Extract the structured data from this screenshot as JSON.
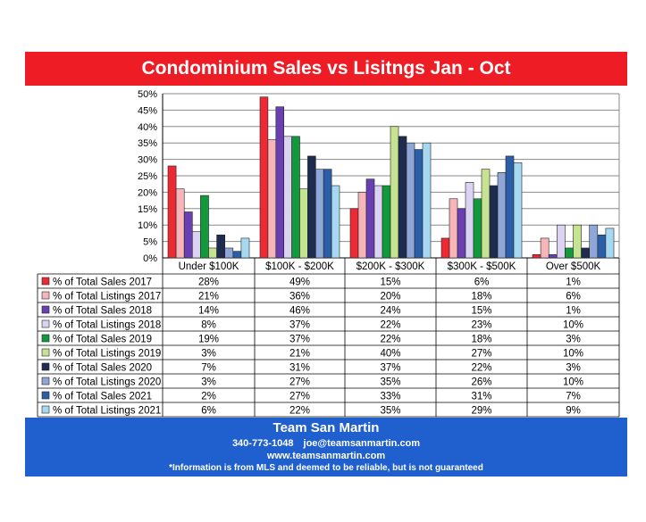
{
  "header": {
    "title": "Condominium Sales vs Lisitngs Jan - Oct"
  },
  "footer": {
    "team": "Team San Martin",
    "phone": "340-773-1048",
    "email": "joe@teamsanmartin.com",
    "website": "www.teamsanmartin.com",
    "disclaimer": "*Information is from MLS and deemed to be reliable, but is not guaranteed"
  },
  "colors": {
    "title_bar": "#ee1c25",
    "footer_bar": "#1f5fce"
  },
  "chart_data": {
    "type": "bar",
    "title": "Condominium Sales vs Lisitngs Jan - Oct",
    "xlabel": "",
    "ylabel": "",
    "ylim": [
      0,
      50
    ],
    "ytick_labels": [
      "0%",
      "5%",
      "10%",
      "15%",
      "20%",
      "25%",
      "30%",
      "35%",
      "40%",
      "45%",
      "50%"
    ],
    "grid": true,
    "legend": "data-table",
    "categories": [
      "Under $100K",
      "$100K - $200K",
      "$200K - $300K",
      "$300K - $500K",
      "Over $500K"
    ],
    "series": [
      {
        "name": "% of Total Sales 2017",
        "color": "#ed2a33",
        "values": [
          28,
          49,
          15,
          6,
          1
        ],
        "labels": [
          "28%",
          "49%",
          "15%",
          "6%",
          "1%"
        ]
      },
      {
        "name": "% of Total Listings 2017",
        "color": "#f5b5b9",
        "values": [
          21,
          36,
          20,
          18,
          6
        ],
        "labels": [
          "21%",
          "36%",
          "20%",
          "18%",
          "6%"
        ]
      },
      {
        "name": "% of Total Sales 2018",
        "color": "#6a3fb2",
        "values": [
          14,
          46,
          24,
          15,
          1
        ],
        "labels": [
          "14%",
          "46%",
          "24%",
          "15%",
          "1%"
        ]
      },
      {
        "name": "% of Total Listings 2018",
        "color": "#dcd3f2",
        "values": [
          8,
          37,
          22,
          23,
          10
        ],
        "labels": [
          "8%",
          "37%",
          "22%",
          "23%",
          "10%"
        ]
      },
      {
        "name": "% of Total Sales 2019",
        "color": "#119a3c",
        "values": [
          19,
          37,
          22,
          18,
          3
        ],
        "labels": [
          "19%",
          "37%",
          "22%",
          "18%",
          "3%"
        ]
      },
      {
        "name": "% of Total Listings 2019",
        "color": "#c6e391",
        "values": [
          3,
          21,
          40,
          27,
          10
        ],
        "labels": [
          "3%",
          "21%",
          "40%",
          "27%",
          "10%"
        ]
      },
      {
        "name": "% of Total Sales 2020",
        "color": "#1d2c4f",
        "values": [
          7,
          31,
          37,
          22,
          3
        ],
        "labels": [
          "7%",
          "31%",
          "37%",
          "22%",
          "3%"
        ]
      },
      {
        "name": "% of Total Listings 2020",
        "color": "#8fa6d6",
        "values": [
          3,
          27,
          35,
          26,
          10
        ],
        "labels": [
          "3%",
          "27%",
          "35%",
          "26%",
          "10%"
        ]
      },
      {
        "name": "% of Total Sales 2021",
        "color": "#2a5fa8",
        "values": [
          2,
          27,
          33,
          31,
          7
        ],
        "labels": [
          "2%",
          "27%",
          "33%",
          "31%",
          "7%"
        ]
      },
      {
        "name": "% of Total Listings 2021",
        "color": "#a7d8f2",
        "values": [
          6,
          22,
          35,
          29,
          9
        ],
        "labels": [
          "6%",
          "22%",
          "35%",
          "29%",
          "9%"
        ]
      }
    ]
  }
}
